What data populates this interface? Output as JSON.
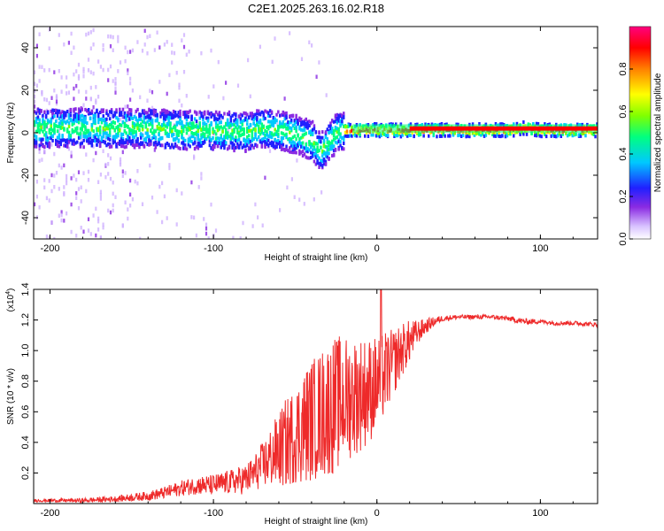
{
  "title": "C2E1.2025.263.16.02.R18",
  "chart_data": [
    {
      "type": "heatmap",
      "name": "Spectrogram",
      "xlabel": "Height of straight line (km)",
      "ylabel": "Frequency (Hz)",
      "xlim": [
        -210,
        135
      ],
      "ylim": [
        -50,
        50
      ],
      "xticks": [
        -200,
        -100,
        0,
        100
      ],
      "yticks": [
        -40,
        -20,
        0,
        20,
        40
      ],
      "ridge": {
        "description": "Frequency of maximum spectral amplitude vs height",
        "x": [
          -200,
          -180,
          -160,
          -140,
          -120,
          -100,
          -80,
          -70,
          -60,
          -50,
          -40,
          -35,
          -30,
          -25,
          -20,
          -10,
          0,
          20,
          40,
          60,
          80,
          90,
          100,
          120,
          135
        ],
        "y": [
          3,
          3,
          3,
          3,
          2,
          2,
          1,
          3,
          2,
          0,
          -3,
          -8,
          -4,
          1,
          2,
          2,
          2,
          2,
          2,
          2,
          2,
          3,
          2,
          2,
          2
        ]
      },
      "colorbar": {
        "label": "Normalized spectral amplitude",
        "range": [
          0.0,
          1.0
        ],
        "ticks": [
          "0.0",
          "0.2",
          "0.4",
          "0.6",
          "0.8"
        ],
        "colors": [
          "#ffffff",
          "#cfb2ff",
          "#8a2be2",
          "#2020ff",
          "#00c8ff",
          "#00ff80",
          "#80ff00",
          "#ffff00",
          "#ff8000",
          "#ff0000",
          "#ff0080"
        ]
      }
    },
    {
      "type": "line",
      "name": "SNR",
      "xlabel": "Height of straight line (km)",
      "ylabel": "SNR (10 * v/v)",
      "y_scale_label": "(x10",
      "y_scale_exp": "4",
      "xlim": [
        -210,
        135
      ],
      "ylim": [
        0,
        1.4
      ],
      "xticks": [
        -200,
        -100,
        0,
        100
      ],
      "yticks": [
        0.2,
        0.4,
        0.6,
        0.8,
        1.0,
        1.2,
        1.4
      ],
      "line_color": "#ee2a2a",
      "series": [
        {
          "name": "SNR",
          "x": [
            -210,
            -200,
            -180,
            -160,
            -140,
            -130,
            -120,
            -110,
            -100,
            -90,
            -80,
            -75,
            -70,
            -65,
            -60,
            -55,
            -50,
            -45,
            -40,
            -35,
            -30,
            -25,
            -20,
            -15,
            -10,
            -5,
            0,
            5,
            10,
            15,
            20,
            25,
            30,
            35,
            40,
            50,
            60,
            70,
            80,
            85,
            90,
            100,
            110,
            120,
            135
          ],
          "y": [
            0.02,
            0.02,
            0.02,
            0.03,
            0.05,
            0.07,
            0.1,
            0.12,
            0.12,
            0.14,
            0.16,
            0.2,
            0.25,
            0.3,
            0.35,
            0.4,
            0.45,
            0.5,
            0.55,
            0.58,
            0.62,
            0.65,
            0.68,
            0.7,
            0.72,
            0.74,
            0.78,
            0.85,
            0.92,
            1.0,
            1.06,
            1.12,
            1.16,
            1.19,
            1.21,
            1.22,
            1.22,
            1.22,
            1.21,
            1.2,
            1.19,
            1.19,
            1.18,
            1.18,
            1.17
          ],
          "noise": [
            0.01,
            0.01,
            0.015,
            0.02,
            0.03,
            0.04,
            0.05,
            0.06,
            0.07,
            0.08,
            0.1,
            0.12,
            0.15,
            0.2,
            0.25,
            0.3,
            0.32,
            0.38,
            0.4,
            0.42,
            0.45,
            0.45,
            0.42,
            0.4,
            0.38,
            0.35,
            0.32,
            0.28,
            0.22,
            0.18,
            0.14,
            0.08,
            0.05,
            0.03,
            0.02,
            0.015,
            0.015,
            0.015,
            0.015,
            0.02,
            0.02,
            0.015,
            0.015,
            0.015,
            0.015
          ]
        }
      ]
    }
  ]
}
